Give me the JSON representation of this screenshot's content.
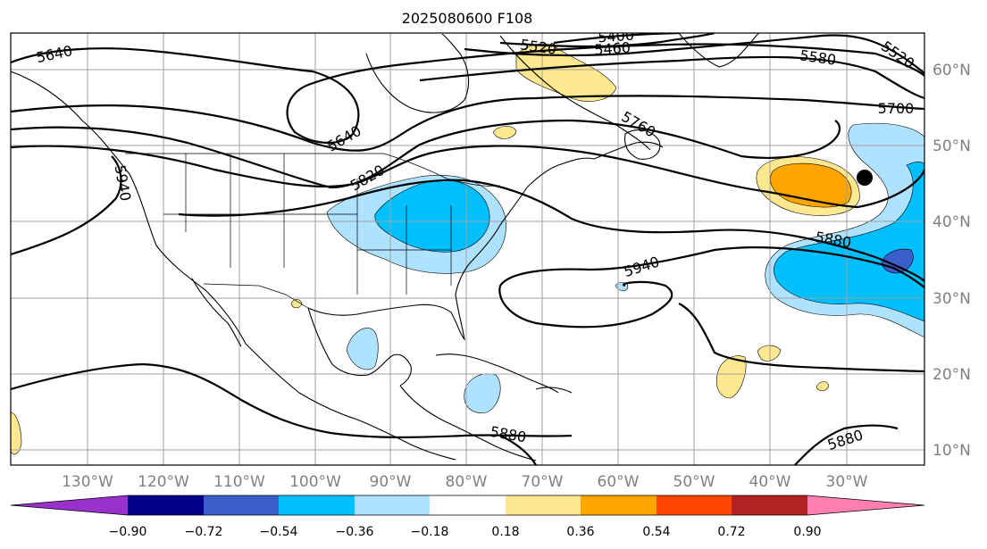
{
  "title": "2025080600 F108",
  "colors": {
    "c_neg090": "#9932cc",
    "c_neg072": "#00008b",
    "c_neg054": "#3a5fcd",
    "c_neg036": "#00bfff",
    "c_neg018": "#aee2ff",
    "c_zero": "#ffffff",
    "c_pos018": "#ffe88f",
    "c_pos036": "#ffa500",
    "c_pos054": "#ff4500",
    "c_pos072": "#b22222",
    "c_pos090": "#ff7fb0"
  },
  "longitude_labels": [
    "130°W",
    "120°W",
    "110°W",
    "100°W",
    "90°W",
    "80°W",
    "70°W",
    "60°W",
    "50°W",
    "40°W",
    "30°W"
  ],
  "latitude_labels": [
    "60°N",
    "50°N",
    "40°N",
    "30°N",
    "20°N",
    "10°N"
  ],
  "contour_labels": [
    "5640",
    "5400",
    "5460",
    "5520",
    "5580",
    "5520",
    "5700",
    "5640",
    "5940",
    "5820",
    "5760",
    "5880",
    "5940",
    "5880",
    "5880"
  ],
  "colorbar": {
    "ticks": [
      "−0.90",
      "−0.72",
      "−0.54",
      "−0.36",
      "−0.18",
      "0.18",
      "0.36",
      "0.54",
      "0.72",
      "0.90"
    ]
  }
}
